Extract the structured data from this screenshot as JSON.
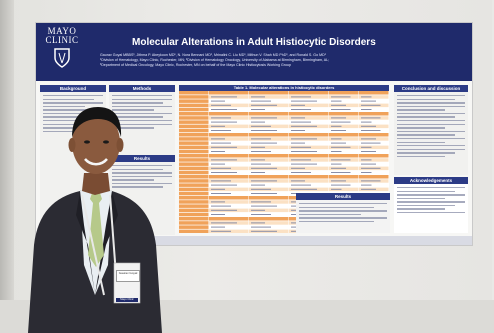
{
  "poster": {
    "logo_text": "MAYO CLINIC",
    "title": "Molecular Alterations in Adult Histiocytic Disorders",
    "authors_line1": "Gaurav Goyal MBBS¹, Jithma P. Abeykoon MD¹, N. Nora Bennani MD¹, Mrinalini C. Liu MD¹, Mithun V. Shah MD PhD¹, and Ronald S. Go MD¹",
    "authors_line2": "¹Division of Hematology, Mayo Clinic, Rochester, MN; ²Division of Hematology Oncology, University of Alabama at Birmingham, Birmingham, AL;",
    "authors_line3": "³Department of Medical Oncology, Mayo Clinic, Rochester, MN on behalf of the Mayo Clinic Histiocytosis Working Group",
    "sections": {
      "background": "Background",
      "methods": "Methods",
      "table1": "Table 1. Molecular alterations in histiocytic disorders",
      "results": "Results",
      "conclusion": "Conclusion and discussion",
      "acknowledgements": "Acknowledgements"
    }
  },
  "badge": {
    "name": "Gaurav Goyal",
    "org": "Mayo Clinic"
  },
  "colors": {
    "header": "#1f2a6b",
    "section_head": "#2c3b86",
    "table_orange": "#f0a25a",
    "table_light": "#fbe1c4",
    "suit": "#2b2b33",
    "shirt": "#e9eef2",
    "tie": "#b6c98a",
    "skin": "#8a5a3e"
  }
}
